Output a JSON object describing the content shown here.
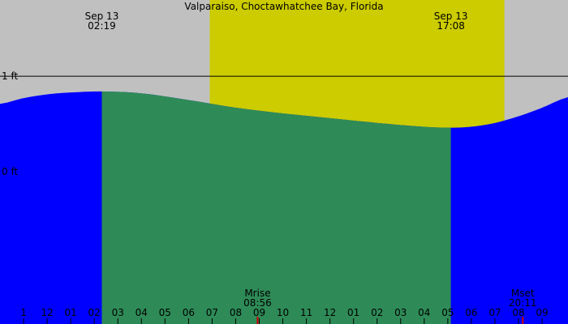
{
  "chart_data": {
    "type": "area",
    "title": "Valparaiso, Choctawhatchee Bay, Florida",
    "colors": {
      "background": "#c0c0c0",
      "daylight": "#cccc00",
      "tide_fill": "#0000ff",
      "highlight_fill": "#2e8b57",
      "moon_tick": "#cc0000",
      "line": "#000000"
    },
    "daylight_window": {
      "start_hour": 6.9,
      "end_hour": 19.4
    },
    "highlight_window": {
      "start_hour": 2.32,
      "end_hour": 17.13
    },
    "y_axis": {
      "ticks": [
        {
          "value": 1,
          "label": "1 ft"
        },
        {
          "value": 0,
          "label": "0 ft"
        }
      ],
      "range": [
        -1.6,
        1.8
      ]
    },
    "x_axis": {
      "range": [
        -2.0,
        22.1
      ],
      "ticks": [
        {
          "hour": -1,
          "label": "1"
        },
        {
          "hour": 0,
          "label": "12"
        },
        {
          "hour": 1,
          "label": "01"
        },
        {
          "hour": 2,
          "label": "02"
        },
        {
          "hour": 3,
          "label": "03"
        },
        {
          "hour": 4,
          "label": "04"
        },
        {
          "hour": 5,
          "label": "05"
        },
        {
          "hour": 6,
          "label": "06"
        },
        {
          "hour": 7,
          "label": "07"
        },
        {
          "hour": 8,
          "label": "08"
        },
        {
          "hour": 9,
          "label": "09"
        },
        {
          "hour": 10,
          "label": "10"
        },
        {
          "hour": 11,
          "label": "11"
        },
        {
          "hour": 12,
          "label": "12"
        },
        {
          "hour": 13,
          "label": "01"
        },
        {
          "hour": 14,
          "label": "02"
        },
        {
          "hour": 15,
          "label": "03"
        },
        {
          "hour": 16,
          "label": "04"
        },
        {
          "hour": 17,
          "label": "05"
        },
        {
          "hour": 18,
          "label": "06"
        },
        {
          "hour": 19,
          "label": "07"
        },
        {
          "hour": 20,
          "label": "08"
        },
        {
          "hour": 21,
          "label": "09"
        }
      ]
    },
    "tide_series": {
      "x": [
        -2.0,
        -1.0,
        0.0,
        1.0,
        2.32,
        4.0,
        6.0,
        8.0,
        10.0,
        12.0,
        14.0,
        16.0,
        17.13,
        18.0,
        19.0,
        20.0,
        21.0,
        22.1
      ],
      "y": [
        0.71,
        0.77,
        0.81,
        0.83,
        0.84,
        0.82,
        0.75,
        0.67,
        0.61,
        0.56,
        0.51,
        0.47,
        0.46,
        0.47,
        0.51,
        0.58,
        0.67,
        0.78
      ]
    },
    "extrema_labels": [
      {
        "hour": 2.32,
        "date": "Sep 13",
        "time": "02:19"
      },
      {
        "hour": 17.13,
        "date": "Sep 13",
        "time": "17:08"
      }
    ],
    "moon_events": [
      {
        "hour": 8.93,
        "label": "Mrise",
        "time": "08:56"
      },
      {
        "hour": 20.18,
        "label": "Mset",
        "time": "20:11"
      }
    ]
  }
}
